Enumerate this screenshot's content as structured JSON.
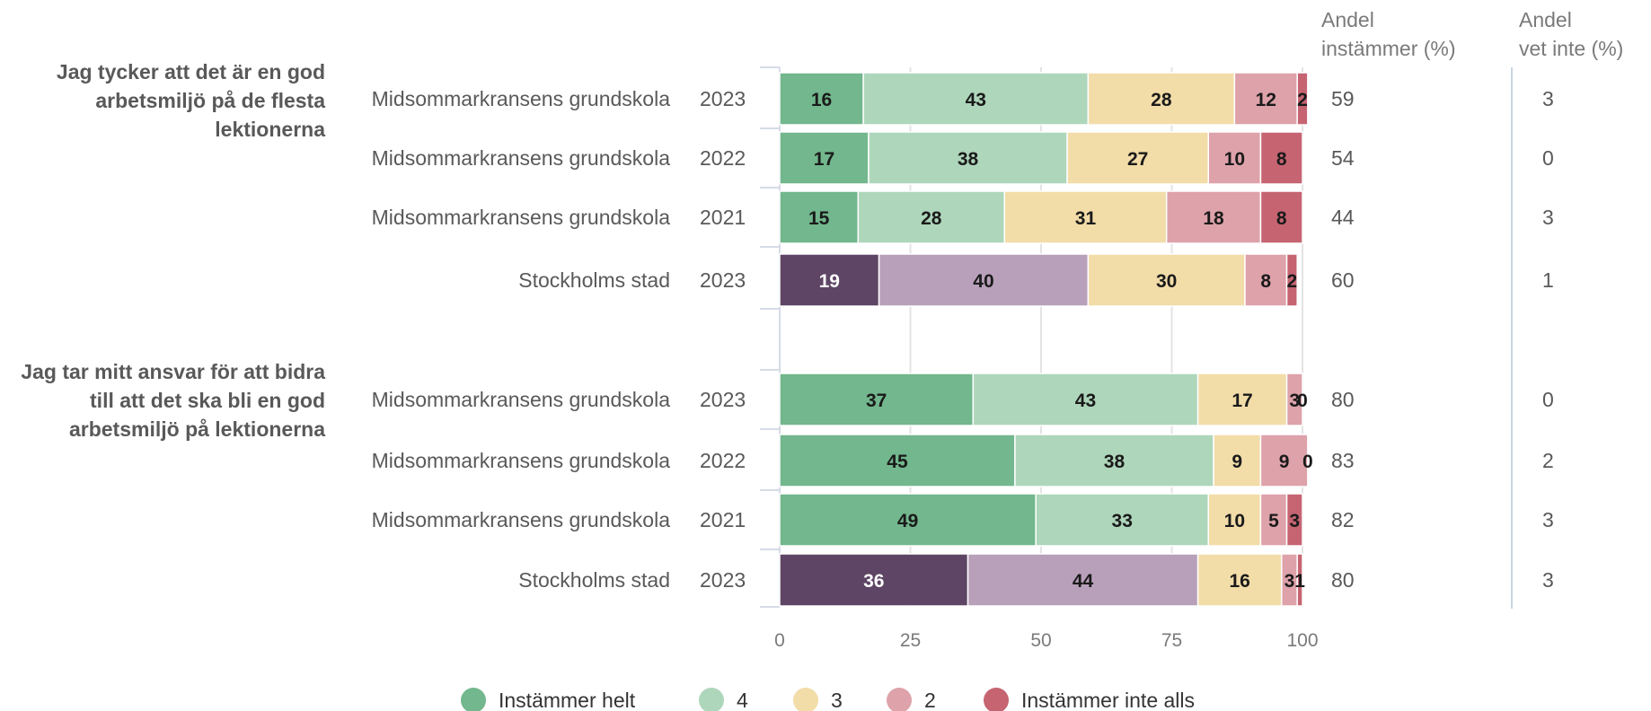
{
  "chart_data": {
    "type": "bar",
    "orientation": "horizontal",
    "stacked": true,
    "xlim": [
      0,
      100
    ],
    "xticks": [
      0,
      25,
      50,
      75,
      100
    ],
    "grid": true,
    "legend_position": "bottom",
    "column_headers": {
      "agree": [
        "Andel",
        "instämmer (%)"
      ],
      "dont_know": [
        "Andel",
        "vet inte (%)"
      ]
    },
    "series": [
      {
        "name": "Instämmer helt",
        "color": "#72b78d"
      },
      {
        "name": "4",
        "color": "#aed6bb"
      },
      {
        "name": "3",
        "color": "#f2dca8"
      },
      {
        "name": "2",
        "color": "#dea2aa"
      },
      {
        "name": "Instämmer inte alls",
        "color": "#c66472"
      }
    ],
    "city_colors": [
      "#5e4565",
      "#b8a0ba",
      "#f2dca8",
      "#dea2aa",
      "#c66472"
    ],
    "groups": [
      {
        "question": [
          "Jag tycker att det är en god",
          "arbetsmiljö på de flesta",
          "lektionerna"
        ],
        "rows": [
          {
            "label": "Midsommarkransens grundskola",
            "year": "2023",
            "values": [
              16,
              43,
              28,
              12,
              2
            ],
            "agree": "59",
            "dont_know": "3",
            "city": false
          },
          {
            "label": "Midsommarkransens grundskola",
            "year": "2022",
            "values": [
              17,
              38,
              27,
              10,
              8
            ],
            "agree": "54",
            "dont_know": "0",
            "city": false
          },
          {
            "label": "Midsommarkransens grundskola",
            "year": "2021",
            "values": [
              15,
              28,
              31,
              18,
              8
            ],
            "agree": "44",
            "dont_know": "3",
            "city": false
          },
          {
            "label": "Stockholms stad",
            "year": "2023",
            "values": [
              19,
              40,
              30,
              8,
              2
            ],
            "agree": "60",
            "dont_know": "1",
            "city": true
          }
        ]
      },
      {
        "question": [
          "Jag tar mitt ansvar för att bidra",
          "till att det ska bli en god",
          "arbetsmiljö på lektionerna"
        ],
        "rows": [
          {
            "label": "Midsommarkransens grundskola",
            "year": "2023",
            "values": [
              37,
              43,
              17,
              3,
              0
            ],
            "agree": "80",
            "dont_know": "0",
            "city": false
          },
          {
            "label": "Midsommarkransens grundskola",
            "year": "2022",
            "values": [
              45,
              38,
              9,
              9,
              0
            ],
            "agree": "83",
            "dont_know": "2",
            "city": false
          },
          {
            "label": "Midsommarkransens grundskola",
            "year": "2021",
            "values": [
              49,
              33,
              10,
              5,
              3
            ],
            "agree": "82",
            "dont_know": "3",
            "city": false
          },
          {
            "label": "Stockholms stad",
            "year": "2023",
            "values": [
              36,
              44,
              16,
              3,
              1
            ],
            "agree": "80",
            "dont_know": "3",
            "city": true
          }
        ]
      }
    ]
  }
}
